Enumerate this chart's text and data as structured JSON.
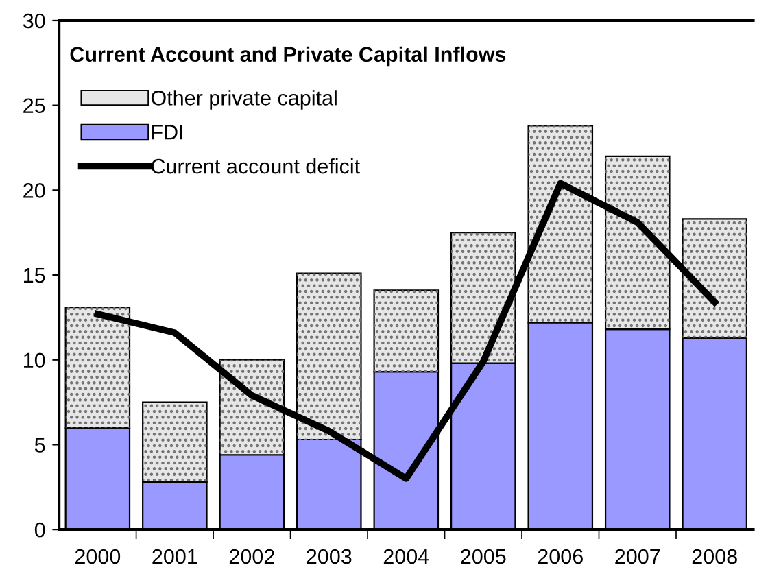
{
  "chart_data": {
    "type": "bar",
    "stacked": true,
    "title": "Current Account and Private Capital Inflows",
    "categories": [
      "2000",
      "2001",
      "2002",
      "2003",
      "2004",
      "2005",
      "2006",
      "2007",
      "2008"
    ],
    "series": [
      {
        "name": "FDI",
        "color": "#9999ff",
        "values": [
          6.0,
          2.8,
          4.4,
          5.3,
          9.3,
          9.8,
          12.2,
          11.8,
          11.3
        ]
      },
      {
        "name": "Other private capital",
        "color": "#e6e6e6",
        "values": [
          7.1,
          4.7,
          5.6,
          9.8,
          4.8,
          7.7,
          11.6,
          10.2,
          7.0
        ]
      },
      {
        "name": "Current account deficit",
        "type": "line",
        "color": "#000000",
        "values": [
          12.7,
          11.6,
          7.9,
          5.8,
          3.0,
          9.9,
          20.4,
          18.1,
          13.4
        ]
      }
    ],
    "ylim": [
      0,
      30
    ],
    "yticks": [
      0,
      5,
      10,
      15,
      20,
      25,
      30
    ],
    "grid": false,
    "legend": "top left",
    "marker": "none"
  }
}
